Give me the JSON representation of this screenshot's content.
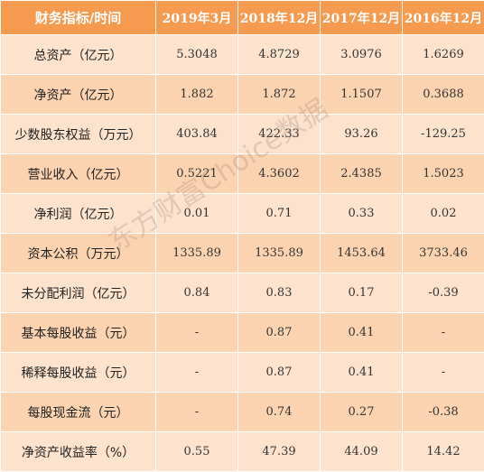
{
  "table": {
    "headers": [
      "财务指标/时间",
      "2019年3月",
      "2018年12月",
      "2017年12月",
      "2016年12月"
    ],
    "rows": [
      [
        "总资产（亿元）",
        "5.3048",
        "4.8729",
        "3.0976",
        "1.6269"
      ],
      [
        "净资产（亿元）",
        "1.882",
        "1.872",
        "1.1507",
        "0.3688"
      ],
      [
        "少数股东权益（万元）",
        "403.84",
        "422.33",
        "93.26",
        "-129.25"
      ],
      [
        "营业收入（亿元）",
        "0.5221",
        "4.3602",
        "2.4385",
        "1.5023"
      ],
      [
        "净利润（亿元）",
        "0.01",
        "0.71",
        "0.33",
        "0.02"
      ],
      [
        "资本公积（万元）",
        "1335.89",
        "1335.89",
        "1453.64",
        "3733.46"
      ],
      [
        "未分配利润（亿元）",
        "0.84",
        "0.83",
        "0.17",
        "-0.39"
      ],
      [
        "基本每股收益（元）",
        "-",
        "0.87",
        "0.41",
        "-"
      ],
      [
        "稀释每股收益（元）",
        "-",
        "0.87",
        "0.41",
        "-"
      ],
      [
        "每股现金流（元）",
        "-",
        "0.74",
        "0.27",
        "-0.38"
      ],
      [
        "净资产收益率（%）",
        "0.55",
        "47.39",
        "44.09",
        "14.42"
      ]
    ]
  },
  "watermark": {
    "text": "东方财富Choice数据"
  }
}
